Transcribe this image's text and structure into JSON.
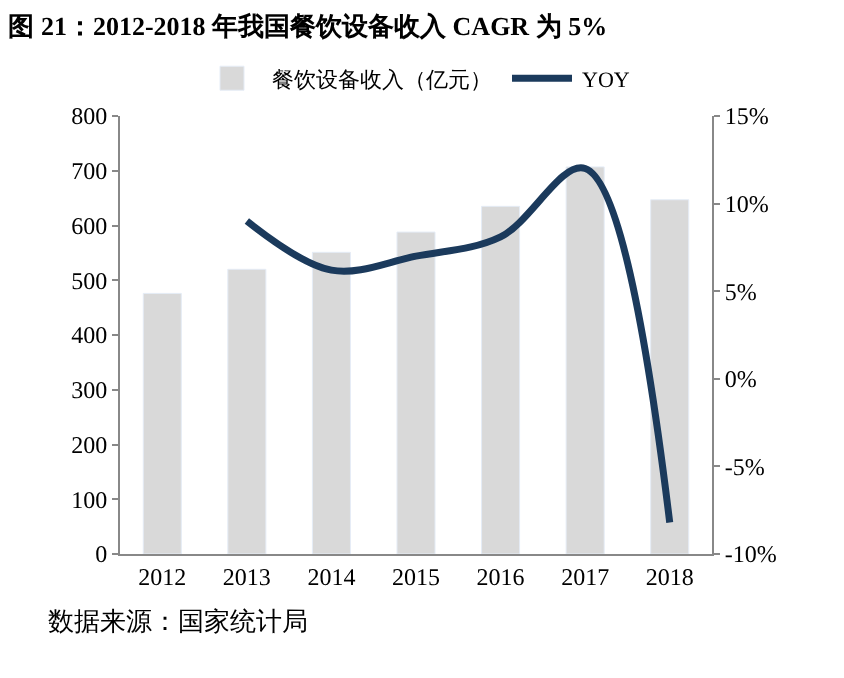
{
  "chart_data": {
    "type": "bar",
    "title": "图 21：2012-2018 年我国餐饮设备收入 CAGR 为 5%",
    "categories": [
      "2012",
      "2013",
      "2014",
      "2015",
      "2016",
      "2017",
      "2018"
    ],
    "series": [
      {
        "name": "餐饮设备收入（亿元）",
        "color": "#d9d9d9",
        "values": [
          476,
          520,
          551,
          588,
          635,
          707,
          647
        ]
      },
      {
        "name": "YOY",
        "type": "line",
        "axis": "y2",
        "color": "#1b3a5c",
        "values": [
          null,
          9.0,
          6.2,
          7.0,
          8.1,
          12.0,
          -8.2
        ]
      }
    ],
    "ylim": [
      0,
      800
    ],
    "yticks": [
      0,
      100,
      200,
      300,
      400,
      500,
      600,
      700,
      800
    ],
    "y2lim": [
      -10,
      15
    ],
    "y2ticks": [
      {
        "value": -10,
        "label": "-10%"
      },
      {
        "value": -5,
        "label": "-5%"
      },
      {
        "value": 0,
        "label": "0%"
      },
      {
        "value": 5,
        "label": "5%"
      },
      {
        "value": 10,
        "label": "10%"
      },
      {
        "value": 15,
        "label": "15%"
      }
    ],
    "legend": "top",
    "annotations": [
      "数据来源：国家统计局"
    ]
  }
}
